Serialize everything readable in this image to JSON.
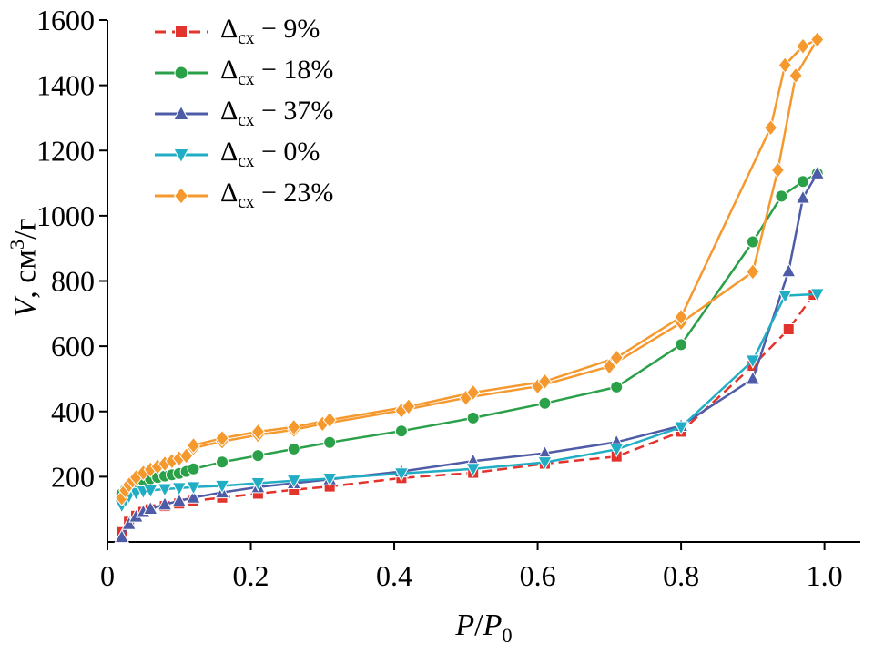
{
  "chart_data": {
    "type": "line",
    "title": "",
    "xlabel_parts": {
      "p1": "P",
      "slash": "/",
      "p2": "P",
      "sub": "0"
    },
    "ylabel_parts": {
      "v": "V",
      "mid": ", см",
      "sup": "3",
      "end": "/г"
    },
    "xlim": [
      0,
      1.05
    ],
    "ylim": [
      0,
      1600
    ],
    "grid": false,
    "legend_position": "top-left",
    "x_ticks": [
      0,
      0.2,
      0.4,
      0.6,
      0.8,
      1.0
    ],
    "x_tick_labels": [
      "0",
      "0.2",
      "0.4",
      "0.6",
      "0.8",
      "1.0"
    ],
    "y_ticks": [
      200,
      400,
      600,
      800,
      1000,
      1200,
      1400,
      1600
    ],
    "y_tick_labels": [
      "200",
      "400",
      "600",
      "800",
      "1000",
      "1200",
      "1400",
      "1600"
    ],
    "series": [
      {
        "name": "Δсх − 9%",
        "label": {
          "prefix": "Δ",
          "sub": "сх",
          "rest": " − 9%"
        },
        "color": "#e2342c",
        "marker": "square",
        "dash": true,
        "segments": [
          [
            [
              0.02,
              30
            ],
            [
              0.03,
              62
            ],
            [
              0.04,
              80
            ],
            [
              0.05,
              92
            ],
            [
              0.06,
              100
            ],
            [
              0.08,
              110
            ],
            [
              0.1,
              118
            ],
            [
              0.12,
              126
            ],
            [
              0.16,
              136
            ],
            [
              0.21,
              148
            ],
            [
              0.26,
              160
            ],
            [
              0.31,
              170
            ],
            [
              0.41,
              196
            ],
            [
              0.51,
              212
            ],
            [
              0.61,
              240
            ],
            [
              0.71,
              262
            ],
            [
              0.8,
              338
            ],
            [
              0.9,
              540
            ],
            [
              0.95,
              652
            ],
            [
              0.985,
              758
            ]
          ]
        ]
      },
      {
        "name": "Δсх − 18%",
        "label": {
          "prefix": "Δ",
          "sub": "сх",
          "rest": " − 18%"
        },
        "color": "#2aa148",
        "marker": "circle",
        "dash": false,
        "segments": [
          [
            [
              0.02,
              148
            ],
            [
              0.025,
              160
            ],
            [
              0.03,
              168
            ],
            [
              0.035,
              175
            ],
            [
              0.04,
              180
            ],
            [
              0.05,
              188
            ],
            [
              0.06,
              194
            ],
            [
              0.07,
              198
            ],
            [
              0.08,
              202
            ],
            [
              0.09,
              206
            ],
            [
              0.1,
              210
            ],
            [
              0.11,
              216
            ],
            [
              0.12,
              224
            ],
            [
              0.16,
              245
            ],
            [
              0.21,
              265
            ],
            [
              0.26,
              285
            ],
            [
              0.31,
              305
            ],
            [
              0.41,
              340
            ],
            [
              0.51,
              380
            ],
            [
              0.61,
              425
            ],
            [
              0.71,
              475
            ],
            [
              0.8,
              605
            ],
            [
              0.9,
              920
            ],
            [
              0.94,
              1060
            ],
            [
              0.97,
              1105
            ],
            [
              0.99,
              1130
            ]
          ]
        ]
      },
      {
        "name": "Δсх − 37%",
        "label": {
          "prefix": "Δ",
          "sub": "сх",
          "rest": " − 37%"
        },
        "color": "#4e5ca8",
        "marker": "triangle-up",
        "dash": false,
        "segments": [
          [
            [
              0.02,
              15
            ],
            [
              0.03,
              55
            ],
            [
              0.04,
              78
            ],
            [
              0.05,
              92
            ],
            [
              0.06,
              102
            ],
            [
              0.08,
              115
            ],
            [
              0.1,
              126
            ],
            [
              0.12,
              136
            ],
            [
              0.16,
              152
            ],
            [
              0.21,
              168
            ],
            [
              0.26,
              180
            ],
            [
              0.31,
              192
            ],
            [
              0.41,
              216
            ],
            [
              0.51,
              248
            ],
            [
              0.61,
              272
            ],
            [
              0.71,
              306
            ],
            [
              0.8,
              356
            ],
            [
              0.9,
              500
            ],
            [
              0.95,
              830
            ],
            [
              0.97,
              1055
            ],
            [
              0.99,
              1130
            ]
          ]
        ]
      },
      {
        "name": "Δсх − 0%",
        "label": {
          "prefix": "Δ",
          "sub": "сх",
          "rest": " − 0%"
        },
        "color": "#21aec5",
        "marker": "triangle-down",
        "dash": false,
        "segments": [
          [
            [
              0.02,
              112
            ],
            [
              0.025,
              128
            ],
            [
              0.03,
              140
            ],
            [
              0.04,
              150
            ],
            [
              0.05,
              155
            ],
            [
              0.06,
              158
            ],
            [
              0.08,
              162
            ],
            [
              0.1,
              165
            ],
            [
              0.12,
              168
            ],
            [
              0.16,
              172
            ],
            [
              0.21,
              180
            ],
            [
              0.26,
              188
            ],
            [
              0.31,
              194
            ],
            [
              0.41,
              210
            ],
            [
              0.51,
              224
            ],
            [
              0.61,
              244
            ],
            [
              0.71,
              284
            ],
            [
              0.8,
              352
            ],
            [
              0.9,
              556
            ],
            [
              0.945,
              755
            ],
            [
              0.99,
              760
            ]
          ]
        ]
      },
      {
        "name": "Δсх − 23%",
        "label": {
          "prefix": "Δ",
          "sub": "сх",
          "rest": " − 23%"
        },
        "color": "#f5992f",
        "marker": "diamond",
        "dash": false,
        "segments": [
          [
            [
              0.02,
              135
            ],
            [
              0.025,
              158
            ],
            [
              0.03,
              175
            ],
            [
              0.035,
              188
            ],
            [
              0.04,
              198
            ],
            [
              0.05,
              212
            ],
            [
              0.06,
              222
            ],
            [
              0.07,
              231
            ],
            [
              0.08,
              240
            ],
            [
              0.09,
              248
            ],
            [
              0.1,
              256
            ],
            [
              0.11,
              264
            ],
            [
              0.12,
              288
            ],
            [
              0.16,
              308
            ],
            [
              0.21,
              328
            ],
            [
              0.26,
              344
            ],
            [
              0.3,
              362
            ],
            [
              0.41,
              403
            ],
            [
              0.5,
              442
            ],
            [
              0.6,
              477
            ],
            [
              0.7,
              538
            ],
            [
              0.8,
              672
            ],
            [
              0.9,
              828
            ],
            [
              0.935,
              1140
            ],
            [
              0.96,
              1430
            ],
            [
              0.99,
              1540
            ]
          ],
          [
            [
              0.99,
              1540
            ],
            [
              0.97,
              1520
            ],
            [
              0.945,
              1462
            ],
            [
              0.925,
              1270
            ],
            [
              0.8,
              690
            ],
            [
              0.71,
              565
            ],
            [
              0.61,
              492
            ],
            [
              0.51,
              458
            ],
            [
              0.42,
              415
            ],
            [
              0.31,
              374
            ],
            [
              0.26,
              352
            ],
            [
              0.21,
              338
            ],
            [
              0.16,
              318
            ],
            [
              0.12,
              296
            ]
          ]
        ]
      }
    ]
  }
}
